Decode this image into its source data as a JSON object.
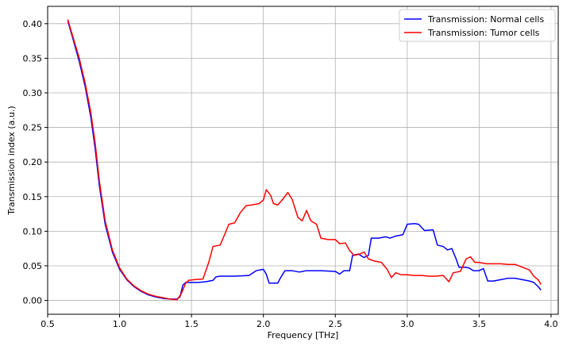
{
  "chart_data": {
    "type": "line",
    "title": "",
    "xlabel": "Frequency [THz]",
    "ylabel": "Transmission index (a.u.)",
    "xlim": [
      0.5,
      4.05
    ],
    "ylim": [
      -0.02,
      0.425
    ],
    "xticks": [
      0.5,
      1.0,
      1.5,
      2.0,
      2.5,
      3.0,
      3.5,
      4.0
    ],
    "xtick_labels": [
      "0.5",
      "1.0",
      "1.5",
      "2.0",
      "2.5",
      "3.0",
      "3.5",
      "4.0"
    ],
    "yticks": [
      0.0,
      0.05,
      0.1,
      0.15,
      0.2,
      0.25,
      0.3,
      0.35,
      0.4
    ],
    "ytick_labels": [
      "0.00",
      "0.05",
      "0.10",
      "0.15",
      "0.20",
      "0.25",
      "0.30",
      "0.35",
      "0.40"
    ],
    "grid": true,
    "legend_position": "top-right",
    "series": [
      {
        "name": "Transmission: Normal cells",
        "color": "#0000ff",
        "points": [
          [
            0.64,
            0.404
          ],
          [
            0.68,
            0.375
          ],
          [
            0.72,
            0.345
          ],
          [
            0.76,
            0.31
          ],
          [
            0.8,
            0.265
          ],
          [
            0.83,
            0.22
          ],
          [
            0.86,
            0.165
          ],
          [
            0.9,
            0.11
          ],
          [
            0.95,
            0.07
          ],
          [
            1.0,
            0.045
          ],
          [
            1.05,
            0.03
          ],
          [
            1.1,
            0.02
          ],
          [
            1.15,
            0.013
          ],
          [
            1.2,
            0.008
          ],
          [
            1.25,
            0.005
          ],
          [
            1.3,
            0.003
          ],
          [
            1.35,
            0.002
          ],
          [
            1.4,
            0.002
          ],
          [
            1.42,
            0.005
          ],
          [
            1.44,
            0.022
          ],
          [
            1.46,
            0.026
          ],
          [
            1.5,
            0.026
          ],
          [
            1.55,
            0.026
          ],
          [
            1.6,
            0.027
          ],
          [
            1.65,
            0.029
          ],
          [
            1.67,
            0.034
          ],
          [
            1.7,
            0.035
          ],
          [
            1.8,
            0.035
          ],
          [
            1.9,
            0.036
          ],
          [
            1.95,
            0.043
          ],
          [
            2.0,
            0.045
          ],
          [
            2.02,
            0.038
          ],
          [
            2.04,
            0.025
          ],
          [
            2.1,
            0.025
          ],
          [
            2.12,
            0.033
          ],
          [
            2.15,
            0.043
          ],
          [
            2.2,
            0.043
          ],
          [
            2.25,
            0.041
          ],
          [
            2.3,
            0.043
          ],
          [
            2.4,
            0.043
          ],
          [
            2.5,
            0.042
          ],
          [
            2.53,
            0.038
          ],
          [
            2.56,
            0.043
          ],
          [
            2.6,
            0.043
          ],
          [
            2.62,
            0.065
          ],
          [
            2.66,
            0.067
          ],
          [
            2.7,
            0.062
          ],
          [
            2.73,
            0.065
          ],
          [
            2.75,
            0.09
          ],
          [
            2.8,
            0.09
          ],
          [
            2.85,
            0.092
          ],
          [
            2.88,
            0.09
          ],
          [
            2.92,
            0.093
          ],
          [
            2.97,
            0.095
          ],
          [
            3.0,
            0.11
          ],
          [
            3.05,
            0.111
          ],
          [
            3.08,
            0.11
          ],
          [
            3.12,
            0.101
          ],
          [
            3.18,
            0.102
          ],
          [
            3.21,
            0.08
          ],
          [
            3.25,
            0.078
          ],
          [
            3.28,
            0.073
          ],
          [
            3.31,
            0.075
          ],
          [
            3.34,
            0.06
          ],
          [
            3.36,
            0.048
          ],
          [
            3.4,
            0.048
          ],
          [
            3.43,
            0.047
          ],
          [
            3.46,
            0.043
          ],
          [
            3.5,
            0.043
          ],
          [
            3.53,
            0.046
          ],
          [
            3.56,
            0.028
          ],
          [
            3.6,
            0.028
          ],
          [
            3.65,
            0.03
          ],
          [
            3.7,
            0.032
          ],
          [
            3.75,
            0.032
          ],
          [
            3.8,
            0.03
          ],
          [
            3.85,
            0.028
          ],
          [
            3.88,
            0.026
          ],
          [
            3.91,
            0.02
          ],
          [
            3.93,
            0.015
          ]
        ]
      },
      {
        "name": "Transmission: Tumor cells",
        "color": "#ff0000",
        "points": [
          [
            0.64,
            0.406
          ],
          [
            0.68,
            0.378
          ],
          [
            0.72,
            0.35
          ],
          [
            0.76,
            0.315
          ],
          [
            0.8,
            0.272
          ],
          [
            0.83,
            0.228
          ],
          [
            0.86,
            0.172
          ],
          [
            0.9,
            0.115
          ],
          [
            0.95,
            0.073
          ],
          [
            1.0,
            0.047
          ],
          [
            1.05,
            0.031
          ],
          [
            1.1,
            0.021
          ],
          [
            1.15,
            0.014
          ],
          [
            1.2,
            0.009
          ],
          [
            1.25,
            0.006
          ],
          [
            1.3,
            0.004
          ],
          [
            1.35,
            0.002
          ],
          [
            1.4,
            0.001
          ],
          [
            1.43,
            0.01
          ],
          [
            1.46,
            0.025
          ],
          [
            1.48,
            0.029
          ],
          [
            1.52,
            0.03
          ],
          [
            1.58,
            0.031
          ],
          [
            1.62,
            0.055
          ],
          [
            1.65,
            0.078
          ],
          [
            1.7,
            0.08
          ],
          [
            1.73,
            0.095
          ],
          [
            1.76,
            0.11
          ],
          [
            1.8,
            0.112
          ],
          [
            1.84,
            0.127
          ],
          [
            1.88,
            0.137
          ],
          [
            1.92,
            0.138
          ],
          [
            1.97,
            0.14
          ],
          [
            2.0,
            0.145
          ],
          [
            2.02,
            0.16
          ],
          [
            2.05,
            0.152
          ],
          [
            2.07,
            0.14
          ],
          [
            2.1,
            0.138
          ],
          [
            2.13,
            0.145
          ],
          [
            2.17,
            0.156
          ],
          [
            2.2,
            0.146
          ],
          [
            2.24,
            0.12
          ],
          [
            2.27,
            0.115
          ],
          [
            2.3,
            0.13
          ],
          [
            2.33,
            0.115
          ],
          [
            2.37,
            0.11
          ],
          [
            2.4,
            0.09
          ],
          [
            2.45,
            0.088
          ],
          [
            2.5,
            0.088
          ],
          [
            2.53,
            0.082
          ],
          [
            2.57,
            0.083
          ],
          [
            2.6,
            0.072
          ],
          [
            2.63,
            0.065
          ],
          [
            2.67,
            0.067
          ],
          [
            2.7,
            0.07
          ],
          [
            2.73,
            0.06
          ],
          [
            2.77,
            0.057
          ],
          [
            2.82,
            0.055
          ],
          [
            2.86,
            0.045
          ],
          [
            2.89,
            0.033
          ],
          [
            2.92,
            0.04
          ],
          [
            2.96,
            0.037
          ],
          [
            3.0,
            0.037
          ],
          [
            3.05,
            0.036
          ],
          [
            3.1,
            0.036
          ],
          [
            3.15,
            0.035
          ],
          [
            3.2,
            0.035
          ],
          [
            3.25,
            0.036
          ],
          [
            3.29,
            0.027
          ],
          [
            3.32,
            0.04
          ],
          [
            3.37,
            0.042
          ],
          [
            3.41,
            0.06
          ],
          [
            3.44,
            0.063
          ],
          [
            3.47,
            0.055
          ],
          [
            3.5,
            0.055
          ],
          [
            3.55,
            0.053
          ],
          [
            3.6,
            0.053
          ],
          [
            3.65,
            0.053
          ],
          [
            3.7,
            0.052
          ],
          [
            3.75,
            0.052
          ],
          [
            3.8,
            0.048
          ],
          [
            3.85,
            0.044
          ],
          [
            3.88,
            0.035
          ],
          [
            3.91,
            0.03
          ],
          [
            3.93,
            0.023
          ]
        ]
      }
    ]
  }
}
